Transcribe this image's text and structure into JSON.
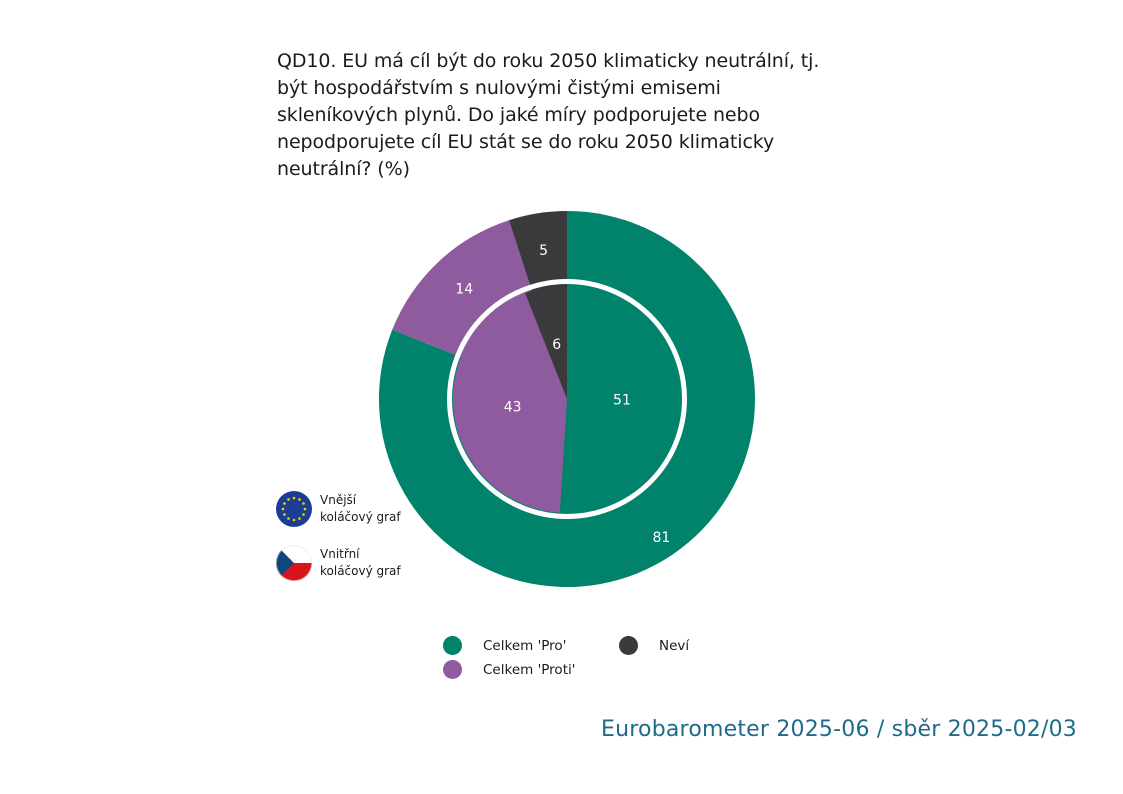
{
  "question": "QD10. EU má cíl být do roku 2050 klimaticky neutrální, tj. být hospodářstvím s nulovými čistými emisemi skleníkových plynů. Do jaké míry podporujete nebo nepodporujete cíl EU stát se do roku 2050 klimaticky neutrální? (%)",
  "colors": {
    "pro": "#00826b",
    "proti": "#8f5b9f",
    "nevi": "#3a3a3d"
  },
  "chart_data": {
    "type": "pie",
    "title": "QD10. EU má cíl být do roku 2050 klimaticky neutrální, tj. být hospodářstvím s nulovými čistými emisemi skleníkových plynů. Do jaké míry podporujete nebo nepodporujete cíl EU stát se do roku 2050 klimaticky neutrální? (%)",
    "categories": [
      "Celkem 'Pro'",
      "Celkem 'Proti'",
      "Neví"
    ],
    "series": [
      {
        "name": "Vnější koláčový graf",
        "values": [
          81,
          14,
          5
        ],
        "labels": [
          "81",
          "14",
          "5"
        ]
      },
      {
        "name": "Vnitřní koláčový graf",
        "values": [
          51,
          43,
          6
        ],
        "labels": [
          "51",
          "43",
          "6"
        ]
      }
    ],
    "legend_position": "bottom"
  },
  "side_legend": {
    "outer": "Vnější\nkoláčový graf",
    "inner": "Vnitřní\nkoláčový graf"
  },
  "legend": {
    "pro": "Celkem 'Pro'",
    "proti": "Celkem 'Proti'",
    "nevi": "Neví"
  },
  "footer": "Eurobarometer 2025-06 / sběr 2025-02/03"
}
